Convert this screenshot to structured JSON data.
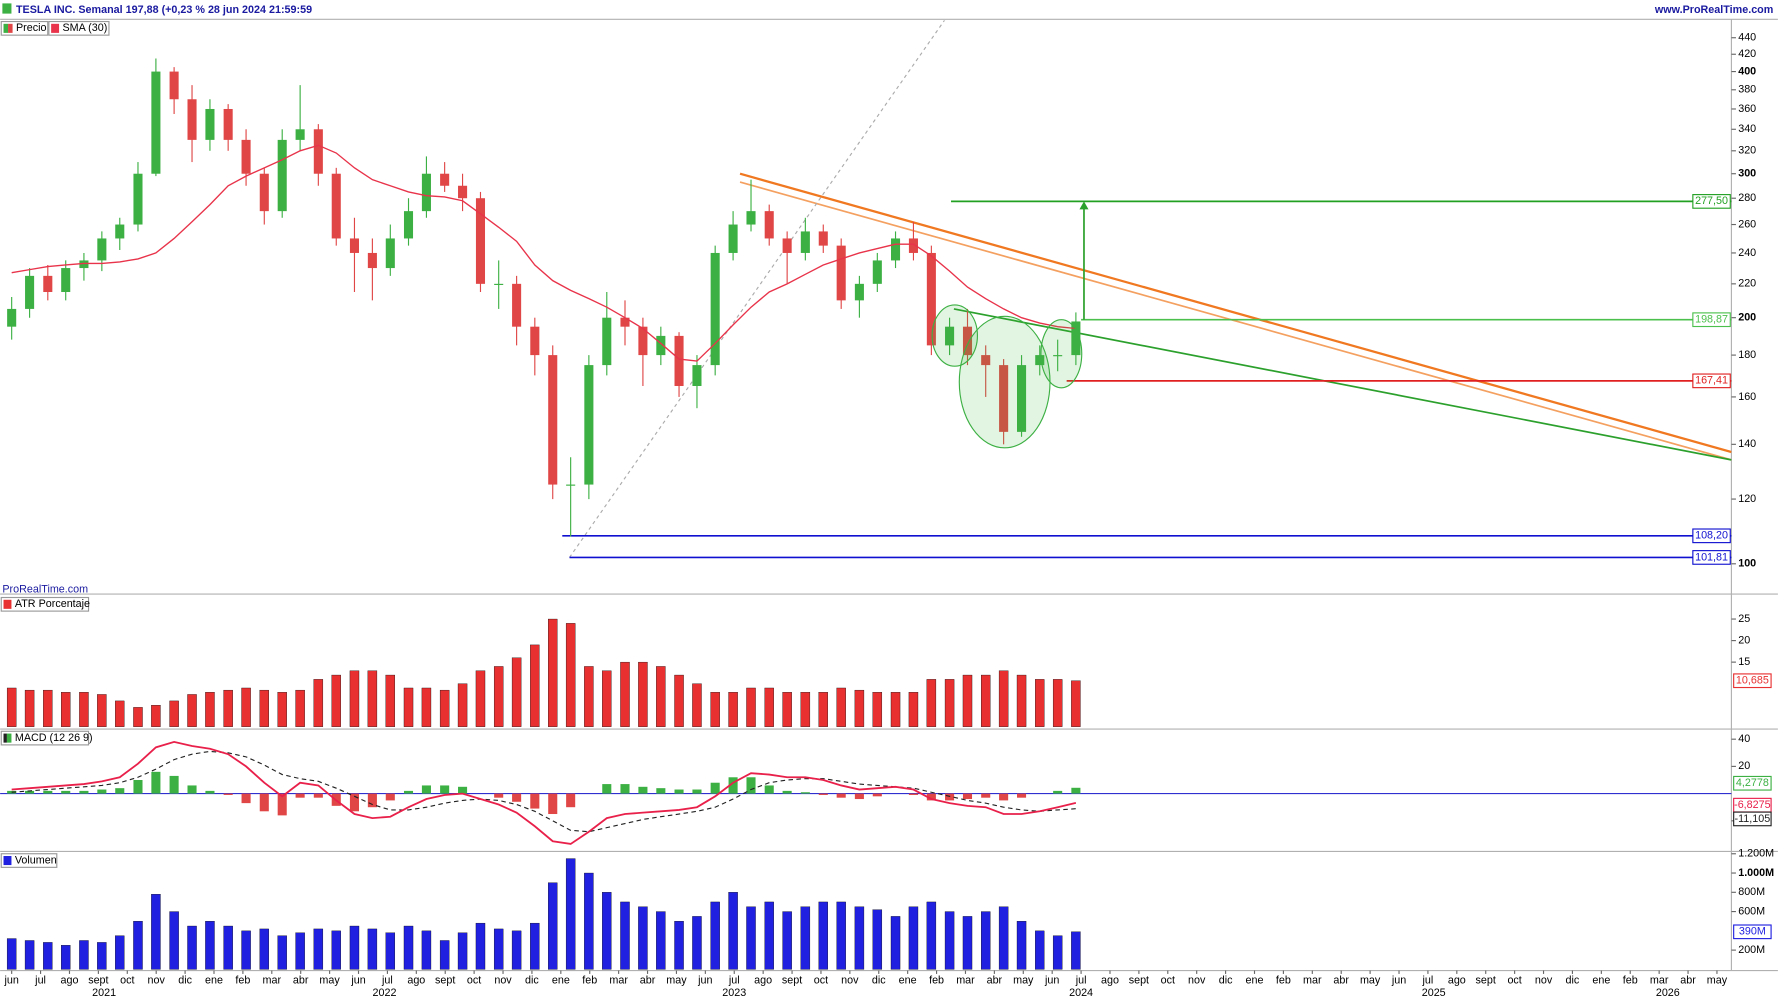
{
  "chart_data": [
    {
      "type": "candlestick",
      "title": "TESLA INC. Semanal 197,88 (+0,23 % 28 jun 2024 21:59:59",
      "source": "www.ProRealTime.com",
      "watermark": "ProRealTime.com",
      "price_name": "Precio",
      "log_scale": true,
      "up_color": "#3cb043",
      "down_color": "#e04646",
      "x": [
        0,
        0.62,
        1.25,
        1.87,
        2.5,
        3.12,
        3.74,
        4.37,
        4.99,
        5.62,
        6.24,
        6.86,
        7.49,
        8.11,
        8.74,
        9.36,
        9.98,
        10.61,
        11.23,
        11.86,
        12.48,
        13.1,
        13.73,
        14.35,
        14.98,
        15.6,
        16.22,
        16.85,
        17.47,
        18.1,
        18.72,
        19.34,
        19.97,
        20.59,
        21.22,
        21.84,
        22.46,
        23.09,
        23.71,
        24.34,
        24.96,
        25.58,
        26.21,
        26.83,
        27.46,
        28.08,
        28.7,
        29.33,
        29.95,
        30.58,
        31.2,
        31.82,
        32.45,
        33.07,
        33.7,
        34.32,
        34.94,
        35.57,
        36.19,
        36.82
      ],
      "open": [
        195,
        205,
        225,
        215,
        230,
        235,
        250,
        260,
        300,
        400,
        370,
        330,
        360,
        330,
        300,
        270,
        330,
        340,
        300,
        250,
        240,
        230,
        250,
        270,
        300,
        290,
        280,
        220,
        220,
        195,
        180,
        125,
        125,
        175,
        200,
        195,
        180,
        190,
        165,
        175,
        240,
        260,
        270,
        250,
        240,
        255,
        245,
        210,
        220,
        235,
        250,
        240,
        185,
        195,
        180,
        175,
        145,
        175,
        180,
        180
      ],
      "high": [
        212,
        230,
        232,
        235,
        240,
        255,
        265,
        310,
        415,
        405,
        385,
        370,
        365,
        340,
        305,
        340,
        385,
        345,
        305,
        265,
        250,
        260,
        280,
        315,
        310,
        300,
        285,
        235,
        225,
        200,
        185,
        135,
        180,
        215,
        210,
        200,
        195,
        192,
        180,
        245,
        270,
        295,
        275,
        255,
        265,
        260,
        250,
        225,
        240,
        255,
        262,
        245,
        200,
        205,
        185,
        178,
        180,
        185,
        188,
        203
      ],
      "low": [
        188,
        200,
        210,
        210,
        222,
        228,
        242,
        255,
        298,
        355,
        310,
        320,
        320,
        290,
        260,
        265,
        320,
        290,
        245,
        215,
        210,
        225,
        245,
        265,
        285,
        270,
        215,
        205,
        185,
        170,
        120,
        108,
        120,
        170,
        185,
        165,
        175,
        160,
        155,
        170,
        235,
        255,
        245,
        220,
        235,
        240,
        205,
        200,
        215,
        230,
        235,
        180,
        180,
        175,
        160,
        140,
        143,
        170,
        172,
        175
      ],
      "close": [
        205,
        225,
        215,
        230,
        235,
        250,
        260,
        300,
        400,
        370,
        330,
        360,
        330,
        300,
        270,
        330,
        340,
        300,
        250,
        240,
        230,
        250,
        270,
        300,
        290,
        280,
        220,
        220,
        195,
        180,
        125,
        125,
        175,
        200,
        195,
        180,
        190,
        165,
        175,
        240,
        260,
        270,
        250,
        240,
        255,
        245,
        210,
        220,
        235,
        250,
        240,
        185,
        195,
        180,
        175,
        145,
        175,
        180,
        180,
        197.88
      ],
      "series": [
        {
          "name": "SMA (30)",
          "color": "#e8334a",
          "values": [
            227,
            229,
            231,
            232,
            233,
            233,
            234,
            236,
            240,
            250,
            262,
            275,
            290,
            298,
            305,
            312,
            320,
            325,
            318,
            305,
            295,
            290,
            285,
            282,
            281,
            278,
            268,
            258,
            248,
            232,
            222,
            216,
            211,
            206,
            200,
            194,
            186,
            178,
            177,
            186,
            196,
            206,
            215,
            220,
            226,
            232,
            236,
            240,
            243,
            246,
            246,
            238,
            228,
            218,
            211,
            205,
            200,
            197,
            195,
            194
          ]
        }
      ],
      "levels": [
        {
          "value": 277.5,
          "label": "277,50",
          "color": "#22a022",
          "from": 32.5
        },
        {
          "value": 198.87,
          "label": "198,87",
          "color": "#4cc04c",
          "from": 37
        },
        {
          "value": 167.41,
          "label": "167,41",
          "color": "#e02020",
          "from": 36.5
        },
        {
          "value": 108.2,
          "label": "108,20",
          "color": "#1010d0",
          "from": 19.05
        },
        {
          "value": 101.81,
          "label": "101,81",
          "color": "#1010d0",
          "from": 19.3
        }
      ],
      "trendlines": [
        {
          "color": "#f07820",
          "points": [
            [
              25.2,
              300
            ],
            [
              59.5,
              137
            ]
          ]
        },
        {
          "color": "#f4a060",
          "points": [
            [
              25.2,
              293
            ],
            [
              59.5,
              134
            ]
          ]
        },
        {
          "color": "#2ca02c",
          "points": [
            [
              32.6,
              205
            ],
            [
              59.5,
              134
            ]
          ]
        },
        {
          "color": "#aaaaaa",
          "points": [
            [
              19.3,
              101.81
            ],
            [
              32.6,
              480
            ]
          ]
        }
      ],
      "arrow": {
        "color": "#2ca02c",
        "points": [
          [
            37.1,
            198.87
          ],
          [
            37.1,
            277.5
          ]
        ]
      },
      "xlim": [
        -0.4,
        59.5
      ],
      "ylim": [
        93,
        462
      ],
      "yticks": [
        100,
        120,
        140,
        160,
        180,
        200,
        220,
        240,
        260,
        280,
        300,
        320,
        340,
        360,
        380,
        400,
        420,
        440
      ],
      "xticks": [
        {
          "value": 0,
          "label": "jun"
        },
        {
          "value": 1,
          "label": "jul"
        },
        {
          "value": 2,
          "label": "ago"
        },
        {
          "value": 3,
          "label": "sept"
        },
        {
          "value": 4,
          "label": "oct"
        },
        {
          "value": 5,
          "label": "nov"
        },
        {
          "value": 6,
          "label": "dic"
        },
        {
          "value": 7,
          "label": "ene"
        },
        {
          "value": 8,
          "label": "feb"
        },
        {
          "value": 9,
          "label": "mar"
        },
        {
          "value": 10,
          "label": "abr"
        },
        {
          "value": 11,
          "label": "may"
        },
        {
          "value": 12,
          "label": "jun"
        },
        {
          "value": 13,
          "label": "jul"
        },
        {
          "value": 14,
          "label": "ago"
        },
        {
          "value": 15,
          "label": "sept"
        },
        {
          "value": 16,
          "label": "oct"
        },
        {
          "value": 17,
          "label": "nov"
        },
        {
          "value": 18,
          "label": "dic"
        },
        {
          "value": 19,
          "label": "ene"
        },
        {
          "value": 20,
          "label": "feb"
        },
        {
          "value": 21,
          "label": "mar"
        },
        {
          "value": 22,
          "label": "abr"
        },
        {
          "value": 23,
          "label": "may"
        },
        {
          "value": 24,
          "label": "jun"
        },
        {
          "value": 25,
          "label": "jul"
        },
        {
          "value": 26,
          "label": "ago"
        },
        {
          "value": 27,
          "label": "sept"
        },
        {
          "value": 28,
          "label": "oct"
        },
        {
          "value": 29,
          "label": "nov"
        },
        {
          "value": 30,
          "label": "dic"
        },
        {
          "value": 31,
          "label": "ene"
        },
        {
          "value": 32,
          "label": "feb"
        },
        {
          "value": 33,
          "label": "mar"
        },
        {
          "value": 34,
          "label": "abr"
        },
        {
          "value": 35,
          "label": "may"
        },
        {
          "value": 36,
          "label": "jun"
        },
        {
          "value": 37,
          "label": "jul"
        },
        {
          "value": 38,
          "label": "ago"
        },
        {
          "value": 39,
          "label": "sept"
        },
        {
          "value": 40,
          "label": "oct"
        },
        {
          "value": 41,
          "label": "nov"
        },
        {
          "value": 42,
          "label": "dic"
        },
        {
          "value": 43,
          "label": "ene"
        },
        {
          "value": 44,
          "label": "feb"
        },
        {
          "value": 45,
          "label": "mar"
        },
        {
          "value": 46,
          "label": "abr"
        },
        {
          "value": 47,
          "label": "may"
        },
        {
          "value": 48,
          "label": "jun"
        },
        {
          "value": 49,
          "label": "jul"
        },
        {
          "value": 50,
          "label": "ago"
        },
        {
          "value": 51,
          "label": "sept"
        },
        {
          "value": 52,
          "label": "oct"
        },
        {
          "value": 53,
          "label": "nov"
        },
        {
          "value": 54,
          "label": "dic"
        },
        {
          "value": 55,
          "label": "ene"
        },
        {
          "value": 56,
          "label": "feb"
        },
        {
          "value": 57,
          "label": "mar"
        },
        {
          "value": 58,
          "label": "abr"
        },
        {
          "value": 59,
          "label": "may"
        }
      ],
      "year_labels": [
        {
          "value": 3.2,
          "label": "2021"
        },
        {
          "value": 12.9,
          "label": "2022"
        },
        {
          "value": 25,
          "label": "2023"
        },
        {
          "value": 37,
          "label": "2024"
        },
        {
          "value": 49.2,
          "label": "2025"
        },
        {
          "value": 57.3,
          "label": "2026"
        }
      ]
    },
    {
      "type": "bar",
      "title": "ATR Porcentaje",
      "color": "#e83030",
      "values": [
        9,
        8.5,
        8.5,
        8,
        8,
        7.5,
        6,
        4.5,
        5,
        6,
        7.5,
        8,
        8.5,
        9,
        8.5,
        8,
        8.5,
        11,
        12,
        13,
        13,
        12,
        9,
        9,
        8.5,
        10,
        13,
        14,
        16,
        19,
        25,
        24,
        14,
        13,
        15,
        15,
        14,
        12,
        10,
        8,
        8,
        9,
        9,
        8,
        8,
        8,
        9,
        8.5,
        8,
        8,
        8,
        11,
        11,
        12,
        12,
        13,
        12,
        11,
        11,
        10.685
      ],
      "last_value_label": "10,685",
      "ylim": [
        0,
        30
      ],
      "yticks": [
        15,
        20,
        25
      ]
    },
    {
      "type": "macd",
      "title": "MACD (12 26 9)",
      "macd": [
        3,
        4,
        5,
        6,
        7,
        9,
        12,
        22,
        34,
        38,
        35,
        33,
        29,
        20,
        8,
        -2,
        8,
        6,
        -5,
        -15,
        -18,
        -17,
        -10,
        -4,
        -1,
        0,
        -4,
        -8,
        -14,
        -24,
        -35,
        -37,
        -28,
        -18,
        -15,
        -14,
        -13,
        -12,
        -10,
        -2,
        8,
        15,
        14,
        12,
        12,
        10,
        6,
        3,
        4,
        5,
        3,
        -4,
        -7,
        -9,
        -10,
        -15,
        -15,
        -13,
        -10,
        -6.8275
      ],
      "signal": [
        1,
        2,
        3,
        4,
        5,
        6,
        8,
        12,
        18,
        25,
        29,
        31,
        30,
        27,
        21,
        14,
        11,
        9,
        4,
        -2,
        -8,
        -12,
        -12,
        -10,
        -7,
        -5,
        -4,
        -5,
        -8,
        -13,
        -20,
        -27,
        -28,
        -25,
        -22,
        -19,
        -17,
        -15,
        -13,
        -10,
        -4,
        3,
        8,
        10,
        11,
        11,
        9,
        7,
        6,
        5,
        4,
        1,
        -2,
        -5,
        -7,
        -10,
        -12,
        -13,
        -12,
        -11.105
      ],
      "histogram": [
        2,
        2,
        2,
        2,
        2,
        3,
        4,
        10,
        16,
        13,
        6,
        2,
        -1,
        -7,
        -13,
        -16,
        -3,
        -3,
        -9,
        -13,
        -10,
        -5,
        2,
        6,
        6,
        5,
        0,
        -3,
        -6,
        -11,
        -15,
        -10,
        0,
        7,
        7,
        5,
        4,
        3,
        3,
        8,
        12,
        12,
        6,
        2,
        1,
        -1,
        -3,
        -4,
        -2,
        0,
        -1,
        -5,
        -5,
        -4,
        -3,
        -5,
        -3,
        0,
        2,
        4.2778
      ],
      "macd_color": "#e8204a",
      "signal_color": "#222222",
      "up_color": "#3cb043",
      "down_color": "#e04646",
      "zero_color": "#3030d0",
      "macd_label": "-6,8275",
      "signal_label": "-11,105",
      "histogram_label": "4,2778",
      "ylim": [
        -41.7,
        45.8
      ],
      "yticks": [
        -20,
        20,
        40
      ]
    },
    {
      "type": "bar",
      "title": "Volumen",
      "color": "#2020e0",
      "values": [
        320,
        300,
        280,
        250,
        300,
        280,
        350,
        500,
        780,
        600,
        450,
        500,
        450,
        400,
        420,
        350,
        380,
        420,
        400,
        450,
        420,
        380,
        450,
        400,
        300,
        380,
        480,
        420,
        400,
        480,
        900,
        1150,
        1000,
        800,
        700,
        650,
        600,
        500,
        550,
        700,
        800,
        650,
        700,
        600,
        650,
        700,
        700,
        650,
        620,
        550,
        650,
        700,
        600,
        550,
        600,
        650,
        500,
        400,
        350,
        390
      ],
      "last_value_label": "390M",
      "ylim": [
        0,
        1212
      ],
      "yticks": [
        {
          "value": 200,
          "label": "200M"
        },
        {
          "value": 600,
          "label": "600M"
        },
        {
          "value": 800,
          "label": "800M"
        },
        {
          "value": 1000,
          "label": "1.000M"
        },
        {
          "value": 1200,
          "label": "1.200M"
        }
      ]
    }
  ]
}
